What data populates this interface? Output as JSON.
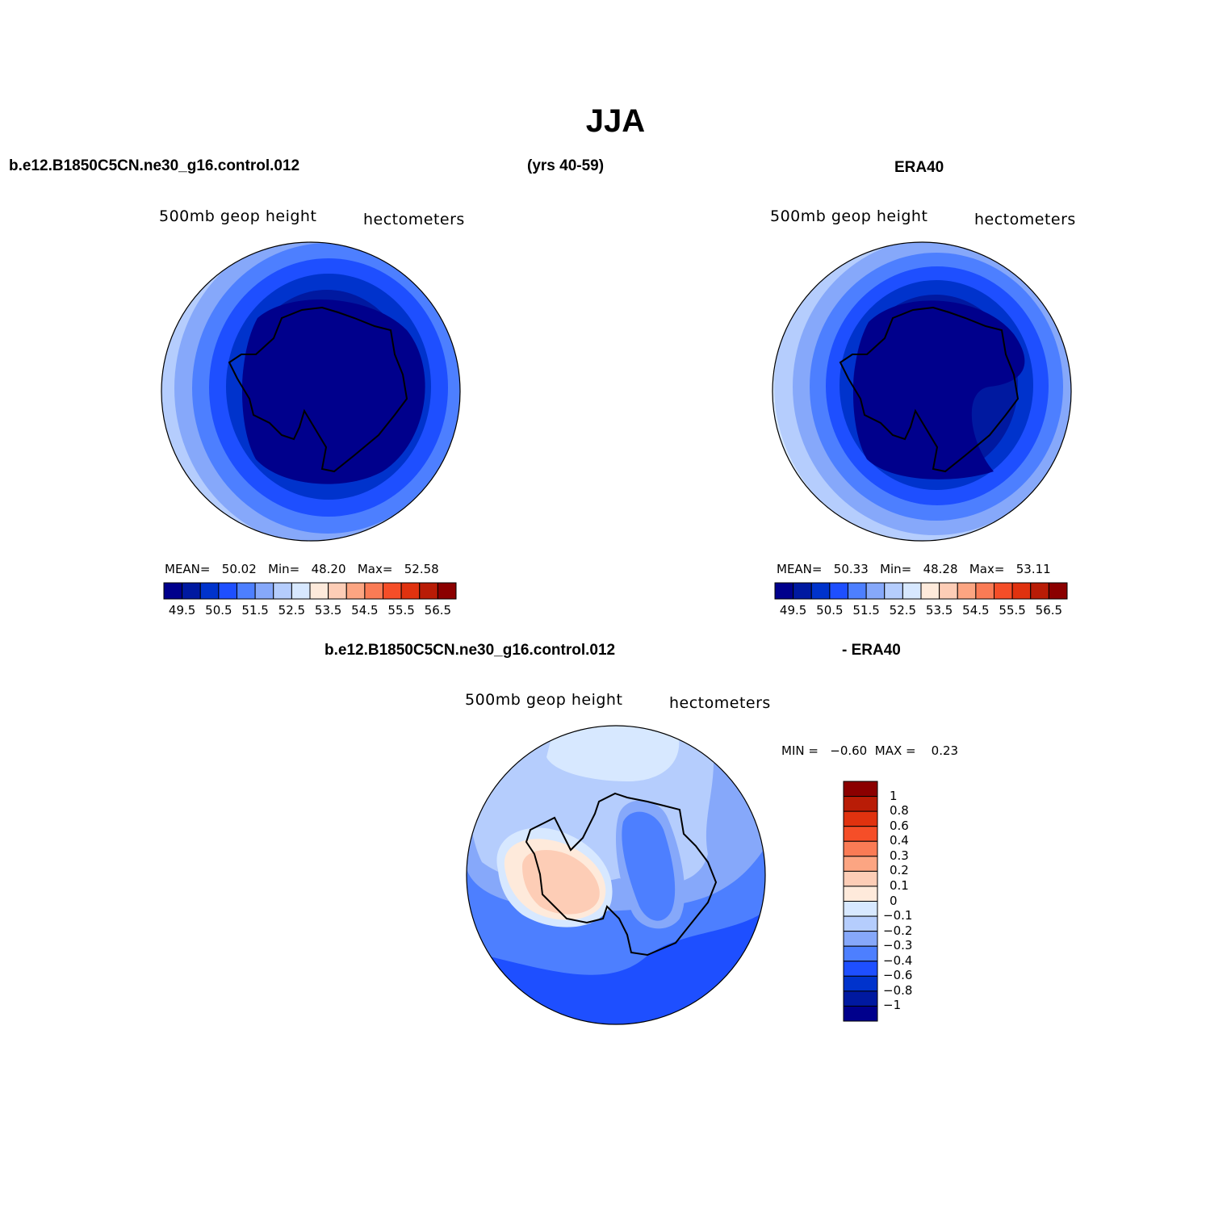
{
  "title": "JJA",
  "top_left": {
    "case": "b.e12.B1850C5CN.ne30_g16.control.012",
    "years": "(yrs 40-59)",
    "variable": "500mb  geop  height",
    "units": "hectometers",
    "stats": {
      "mean_label": "MEAN=",
      "mean": "50.02",
      "min_label": "Min=",
      "min": "48.20",
      "max_label": "Max=",
      "max": "52.58"
    }
  },
  "top_right": {
    "case": "ERA40",
    "variable": "500mb  geop  height",
    "units": "hectometers",
    "stats": {
      "mean_label": "MEAN=",
      "mean": "50.33",
      "min_label": "Min=",
      "min": "48.28",
      "max_label": "Max=",
      "max": "53.11"
    }
  },
  "bottom": {
    "case_left": "b.e12.B1850C5CN.ne30_g16.control.012",
    "case_right": "- ERA40",
    "variable": "500mb  geop  height",
    "units": "hectometers",
    "minmax": {
      "min_label": "MIN =",
      "min": "−0.60",
      "max_label": "MAX =",
      "max": "0.23"
    }
  },
  "colorbar_abs": {
    "colors": [
      "#00008c",
      "#0019a0",
      "#0033cc",
      "#1e4fff",
      "#4d7fff",
      "#86a8fa",
      "#b5cdfd",
      "#d7e8ff",
      "#feeadb",
      "#fdcdb6",
      "#fca582",
      "#fa7b55",
      "#f54e28",
      "#e0320f",
      "#b91c06",
      "#8b0000"
    ],
    "ticks": [
      "49.5",
      "50.5",
      "51.5",
      "52.5",
      "53.5",
      "54.5",
      "55.5",
      "56.5"
    ]
  },
  "colorbar_diff": {
    "colors": [
      "#8b0000",
      "#b91c06",
      "#e0320f",
      "#f54e28",
      "#fa7b55",
      "#fca582",
      "#fdcdb6",
      "#feeadb",
      "#d7e8ff",
      "#b5cdfd",
      "#86a8fa",
      "#4d7fff",
      "#1e4fff",
      "#0033cc",
      "#0019a0",
      "#00008c"
    ],
    "ticks": [
      "1",
      "0.8",
      "0.6",
      "0.4",
      "0.3",
      "0.2",
      "0.1",
      "0",
      "−0.1",
      "−0.2",
      "−0.3",
      "−0.4",
      "−0.6",
      "−0.8",
      "−1"
    ]
  }
}
